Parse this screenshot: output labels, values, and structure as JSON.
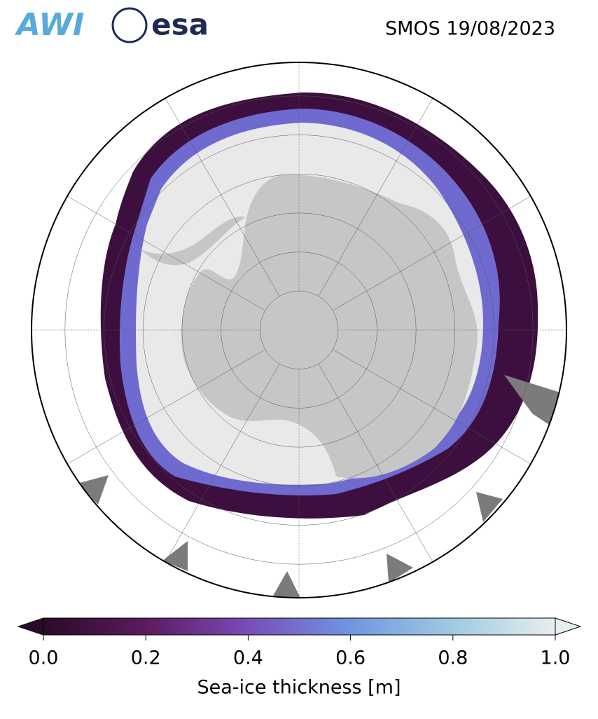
{
  "header": {
    "logos": {
      "awi": "AWI",
      "esa": "esa"
    },
    "title": "SMOS 19/08/2023"
  },
  "colorbar": {
    "label": "Sea-ice thickness [m]",
    "range": [
      0,
      1
    ],
    "ticks": [
      {
        "value": 0,
        "label": "0.0"
      },
      {
        "value": 0.2,
        "label": "0.2"
      },
      {
        "value": 0.4,
        "label": "0.4"
      },
      {
        "value": 0.6,
        "label": "0.6"
      },
      {
        "value": 0.8,
        "label": "0.8"
      },
      {
        "value": 1,
        "label": "1.0"
      }
    ],
    "colors": [
      "#2a0b26",
      "#5b1b5e",
      "#7a4cb9",
      "#6f96e0",
      "#9fcbe0",
      "#e6eeee"
    ],
    "extend": "both"
  }
}
